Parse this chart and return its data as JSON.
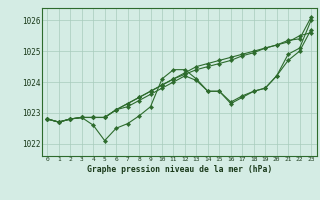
{
  "title": "Graphe pression niveau de la mer (hPa)",
  "background_color": "#d4ece4",
  "grid_color": "#a8ccbc",
  "line_color": "#2d6b2d",
  "xlim": [
    -0.5,
    23.5
  ],
  "ylim": [
    1021.6,
    1026.4
  ],
  "yticks": [
    1022,
    1023,
    1024,
    1025,
    1026
  ],
  "xtick_labels": [
    "0",
    "1",
    "2",
    "3",
    "4",
    "5",
    "6",
    "7",
    "8",
    "9",
    "10",
    "11",
    "12",
    "13",
    "14",
    "15",
    "16",
    "17",
    "18",
    "19",
    "20",
    "21",
    "22",
    "23"
  ],
  "series": [
    [
      1022.8,
      1022.7,
      1022.8,
      1022.85,
      1022.6,
      1022.1,
      1022.5,
      1022.65,
      1022.9,
      1023.2,
      1024.1,
      1024.4,
      1024.4,
      1024.1,
      1023.7,
      1023.7,
      1023.3,
      1023.5,
      1023.7,
      1023.8,
      1024.2,
      1024.9,
      1025.1,
      1026.0
    ],
    [
      1022.8,
      1022.7,
      1022.8,
      1022.85,
      1022.85,
      1022.85,
      1023.1,
      1023.3,
      1023.5,
      1023.7,
      1023.9,
      1024.1,
      1024.3,
      1024.5,
      1024.6,
      1024.7,
      1024.8,
      1024.9,
      1025.0,
      1025.1,
      1025.2,
      1025.3,
      1025.5,
      1025.6
    ],
    [
      1022.8,
      1022.7,
      1022.8,
      1022.85,
      1022.85,
      1022.85,
      1023.1,
      1023.2,
      1023.4,
      1023.6,
      1023.8,
      1024.0,
      1024.2,
      1024.05,
      1023.7,
      1023.7,
      1023.35,
      1023.55,
      1023.7,
      1023.8,
      1024.2,
      1024.7,
      1025.0,
      1025.7
    ],
    [
      1022.8,
      1022.7,
      1022.8,
      1022.85,
      1022.85,
      1022.85,
      1023.1,
      1023.3,
      1023.5,
      1023.7,
      1023.9,
      1024.1,
      1024.25,
      1024.4,
      1024.5,
      1024.6,
      1024.7,
      1024.85,
      1024.95,
      1025.1,
      1025.2,
      1025.35,
      1025.4,
      1026.1
    ]
  ]
}
